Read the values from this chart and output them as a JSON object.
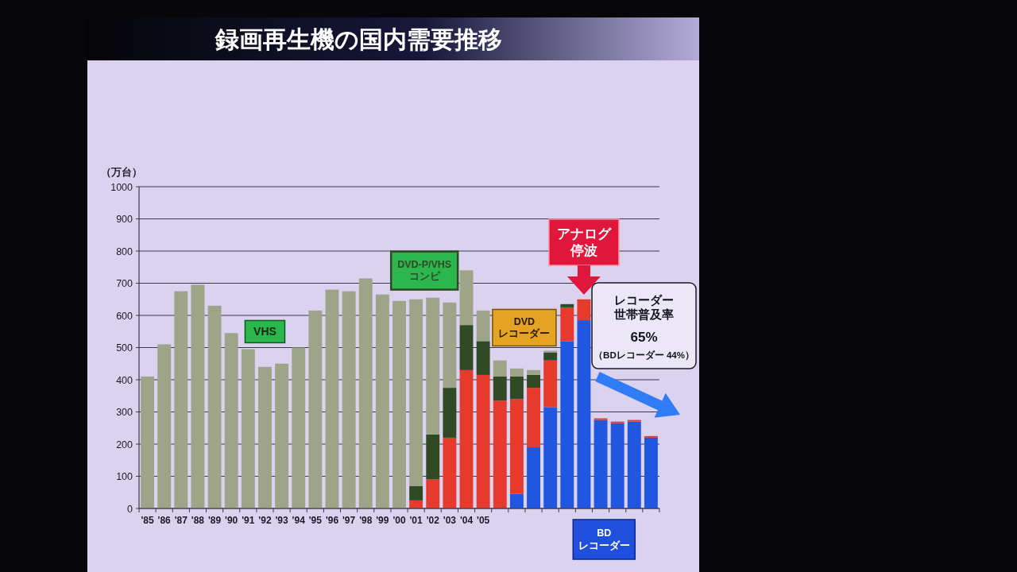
{
  "chart_data": {
    "type": "bar",
    "title": "録画再生機の国内需要推移",
    "ylabel": "（万台）",
    "categories": [
      "'85",
      "'86",
      "'87",
      "'88",
      "'89",
      "'90",
      "'91",
      "'92",
      "'93",
      "'94",
      "'95",
      "'96",
      "'97",
      "'98",
      "'99",
      "'00",
      "'01",
      "'02",
      "'03",
      "'04",
      "'05",
      null,
      null,
      null,
      null,
      null,
      null,
      null,
      null,
      null,
      null
    ],
    "stacked": true,
    "series": [
      {
        "name": "BD\nレコーダー",
        "color": "#2157e0",
        "values": [
          null,
          null,
          null,
          null,
          null,
          null,
          null,
          null,
          null,
          null,
          null,
          null,
          null,
          null,
          null,
          null,
          null,
          null,
          null,
          null,
          null,
          null,
          45,
          190,
          315,
          520,
          585,
          275,
          265,
          270,
          220
        ]
      },
      {
        "name": "DVD\nレコーダー",
        "color": "#e53a2c",
        "values": [
          null,
          null,
          null,
          null,
          null,
          null,
          null,
          null,
          null,
          null,
          null,
          null,
          null,
          null,
          null,
          null,
          25,
          90,
          220,
          430,
          415,
          335,
          295,
          185,
          145,
          105,
          65,
          5,
          5,
          5,
          5
        ]
      },
      {
        "name": "DVD-P/VHS\nコンビ",
        "color": "#2f4a25",
        "values": [
          null,
          null,
          null,
          null,
          null,
          null,
          null,
          null,
          null,
          null,
          null,
          null,
          null,
          null,
          null,
          null,
          45,
          140,
          155,
          140,
          105,
          75,
          70,
          40,
          25,
          10,
          null,
          null,
          null,
          null,
          null
        ]
      },
      {
        "name": "VHS",
        "color": "#9ea487",
        "values": [
          410,
          510,
          675,
          695,
          630,
          545,
          495,
          440,
          450,
          500,
          615,
          680,
          675,
          715,
          665,
          645,
          580,
          425,
          265,
          170,
          95,
          50,
          25,
          15,
          5,
          null,
          null,
          null,
          null,
          null,
          null
        ]
      }
    ],
    "ylim": [
      0,
      1000
    ],
    "yticks": [
      0,
      100,
      200,
      300,
      400,
      500,
      600,
      700,
      800,
      900,
      1000
    ],
    "grid": "y",
    "annotations": [
      "アナログ停波",
      "レコーダー世帯普及率",
      "65%",
      "（BDレコーダー 44%）"
    ]
  }
}
